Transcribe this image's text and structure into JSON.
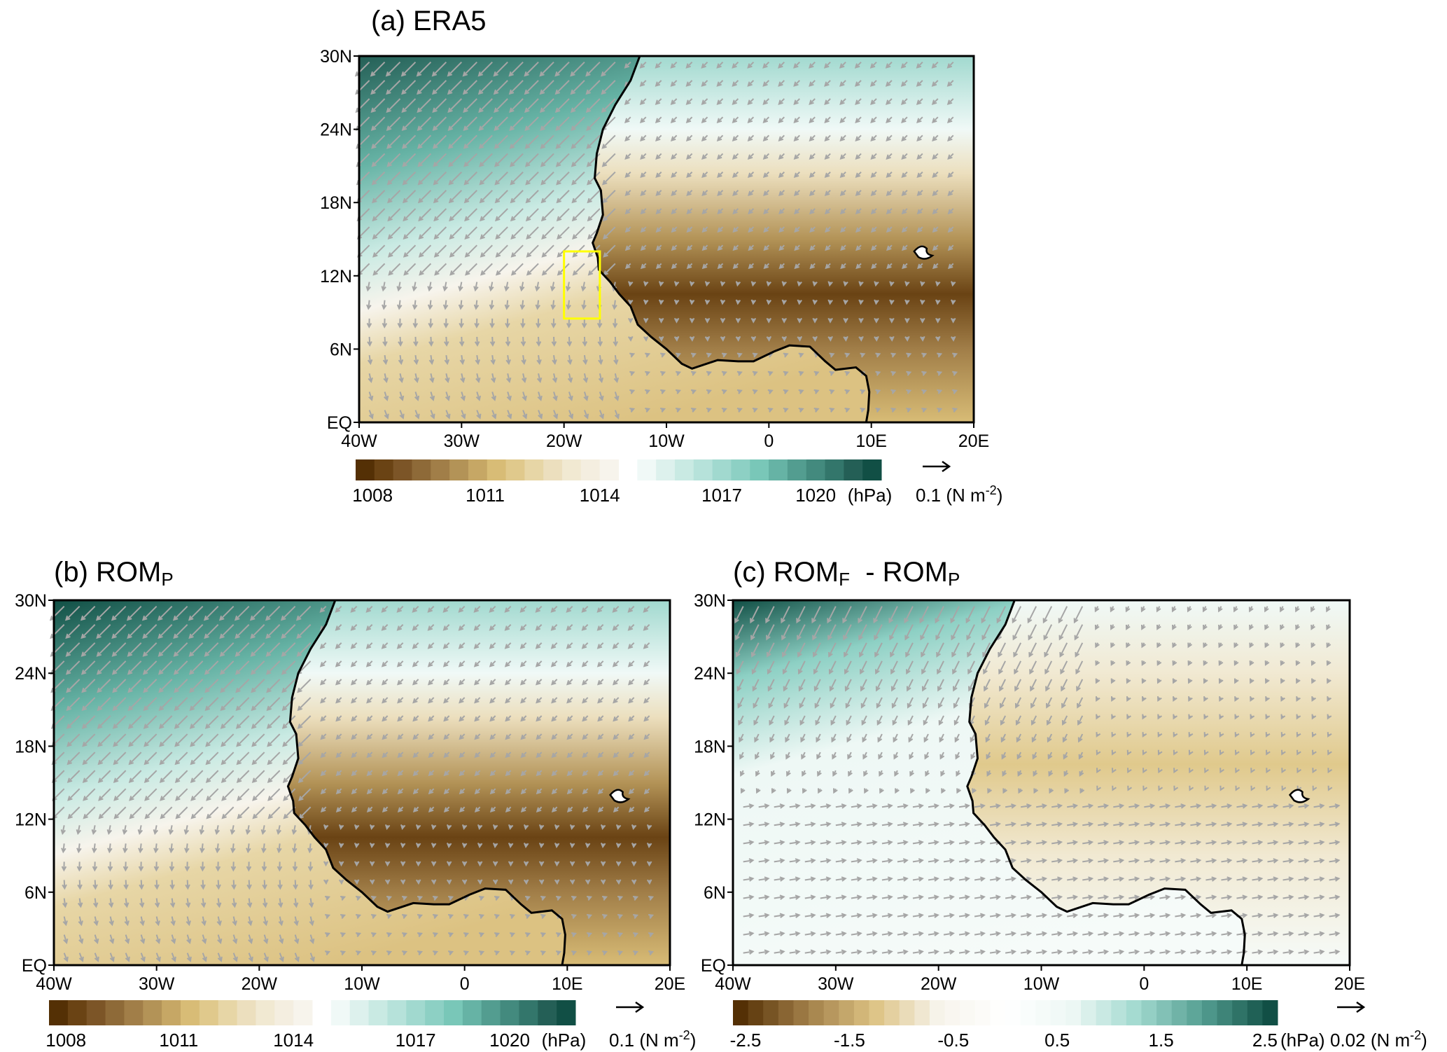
{
  "panels": [
    {
      "id": "a",
      "title": "(a) ERA5",
      "title_main": "(a) ERA5",
      "title_sub": "",
      "field": "pressure",
      "has_box": true,
      "box_color": "#ffff00"
    },
    {
      "id": "b",
      "title": "(b) ROMP",
      "title_main": "(b) ROM",
      "title_sub": "P",
      "field": "pressure",
      "has_box": false
    },
    {
      "id": "c",
      "title": "(c) ROMF - ROMP",
      "title_main": "(c) ROM",
      "title_sub": "F",
      "title_mid": "  - ROM",
      "title_sub2": "P",
      "field": "difference",
      "has_box": false
    }
  ],
  "axes": {
    "lon_ticks": [
      "40W",
      "30W",
      "20W",
      "10W",
      "0",
      "10E",
      "20E"
    ],
    "lat_ticks": [
      "EQ",
      "6N",
      "12N",
      "18N",
      "24N",
      "30N"
    ],
    "lon_range": [
      -40,
      20
    ],
    "lat_range": [
      0,
      30
    ]
  },
  "colorbars": {
    "pressure": {
      "labels": [
        "1008",
        "1011",
        "1014",
        "1017",
        "1020"
      ],
      "unit": "(hPa)",
      "brown": [
        "#543005",
        "#6a4314",
        "#7c5527",
        "#8e6a38",
        "#a17e48",
        "#b39357",
        "#c6a765",
        "#d8bc76",
        "#e0c98c",
        "#e7d6a6",
        "#ecdfbe",
        "#f1e9d2",
        "#f4eee0",
        "#f7f4ec"
      ],
      "teal": [
        "#f0f9f7",
        "#ddf1ed",
        "#c9eae3",
        "#b6e2da",
        "#a1d9cf",
        "#8dd0c4",
        "#79c7b8",
        "#66b3a5",
        "#539d90",
        "#438a7e",
        "#33766b",
        "#245f56",
        "#114f45"
      ],
      "vector_ref": "0.1 (N m-2)",
      "vector_ref_main": "0.1 (N m",
      "vector_ref_exp": "-2",
      "vector_ref_end": ")"
    },
    "difference": {
      "labels": [
        "-2.5",
        "-1.5",
        "-0.5",
        "0.5",
        "1.5",
        "2.5"
      ],
      "unit": "(hPa)",
      "vector_ref": "0.02 (N m-2)",
      "vector_ref_main": "0.02 (N m",
      "vector_ref_exp": "-2",
      "vector_ref_end": ")"
    }
  },
  "colors": {
    "arrow": "#a6a6a6",
    "coast": "#000000",
    "box": "#ffff00"
  }
}
